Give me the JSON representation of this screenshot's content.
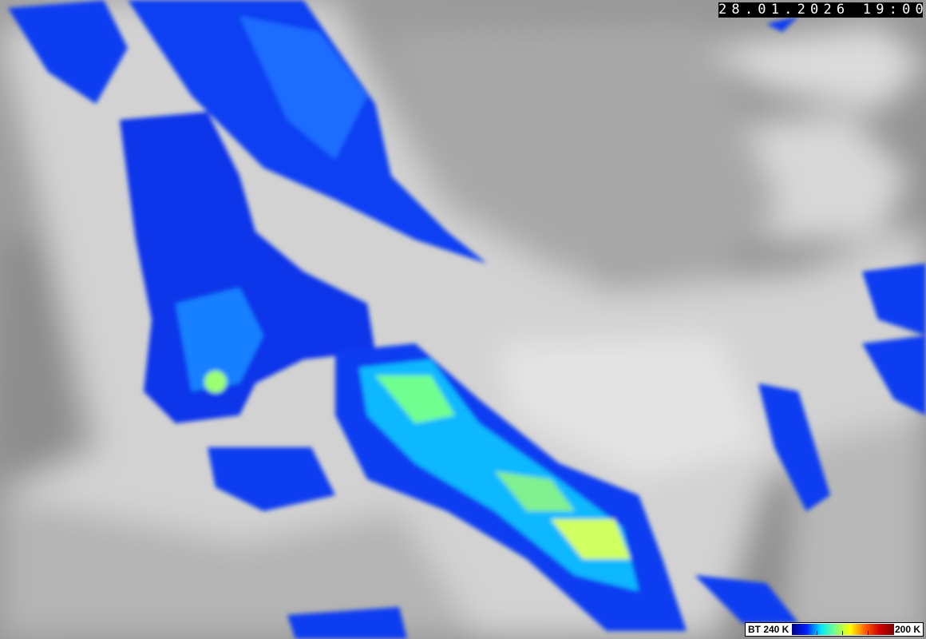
{
  "timestamp": "28.01.2026 19:00",
  "legend": {
    "min_label": "BT 240 K",
    "max_label": "200 K",
    "colors": [
      "#00008a",
      "#0020ff",
      "#00e8ff",
      "#80ff80",
      "#ffff00",
      "#ff6000",
      "#d00000",
      "#800000"
    ]
  },
  "image": {
    "description_colors": {
      "cloud_gray": "#c8c8c8",
      "background_gray": "#8f8f8f",
      "cold_cloud_blue": "#0030ff"
    }
  }
}
